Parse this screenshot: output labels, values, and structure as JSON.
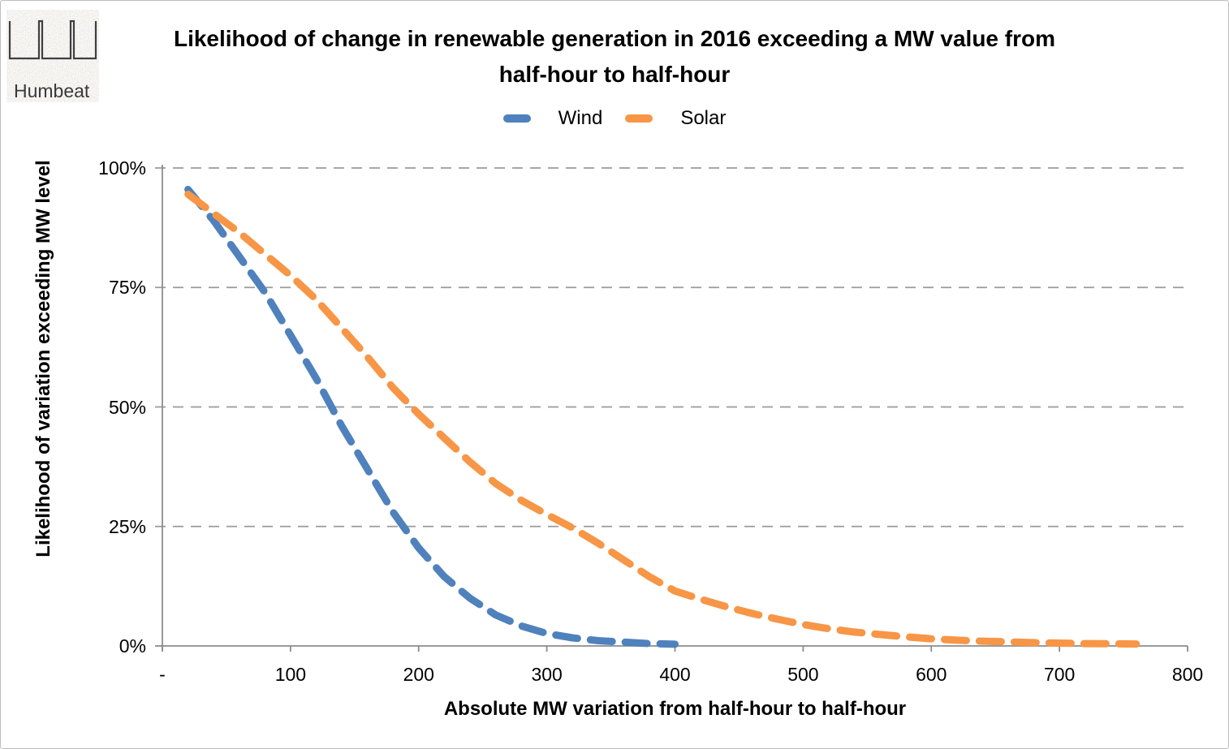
{
  "logo": {
    "text": "Humbeat"
  },
  "title": {
    "line1": "Likelihood of change in renewable generation in 2016 exceeding a MW value from",
    "line2": "half-hour to half-hour"
  },
  "colors": {
    "wind": "#4F81BD",
    "solar": "#F79646",
    "gridline": "#9B9B9B",
    "axis": "#8C8C8C",
    "frame_border": "#BDBDBD",
    "text": "#000000"
  },
  "chart_data": {
    "type": "line",
    "title": "Likelihood of change in renewable generation in 2016 exceeding a MW value from half-hour to half-hour",
    "xlabel": "Absolute MW variation from half-hour to half-hour",
    "ylabel": "Likelihood of variation exceeding MW level",
    "xlim": [
      0,
      800
    ],
    "ylim": [
      0,
      100
    ],
    "grid": "horizontal-dashed",
    "legend_position": "top-center",
    "line_style": "thick-dashed-round-cap",
    "x_ticks": [
      {
        "value": 0,
        "label": "-"
      },
      {
        "value": 100,
        "label": "100"
      },
      {
        "value": 200,
        "label": "200"
      },
      {
        "value": 300,
        "label": "300"
      },
      {
        "value": 400,
        "label": "400"
      },
      {
        "value": 500,
        "label": "500"
      },
      {
        "value": 600,
        "label": "600"
      },
      {
        "value": 700,
        "label": "700"
      },
      {
        "value": 800,
        "label": "800"
      }
    ],
    "y_ticks": [
      {
        "value": 0,
        "label": "0%"
      },
      {
        "value": 25,
        "label": "25%"
      },
      {
        "value": 50,
        "label": "50%"
      },
      {
        "value": 75,
        "label": "75%"
      },
      {
        "value": 100,
        "label": "100%"
      }
    ],
    "series": [
      {
        "name": "Wind",
        "color": "#4F81BD",
        "points": [
          [
            20,
            95.5
          ],
          [
            40,
            89
          ],
          [
            60,
            81.5
          ],
          [
            80,
            74
          ],
          [
            100,
            65
          ],
          [
            120,
            56
          ],
          [
            140,
            46
          ],
          [
            160,
            37
          ],
          [
            180,
            28
          ],
          [
            200,
            20.5
          ],
          [
            220,
            14.5
          ],
          [
            240,
            10
          ],
          [
            260,
            6.5
          ],
          [
            280,
            4.2
          ],
          [
            300,
            2.6
          ],
          [
            320,
            1.7
          ],
          [
            340,
            1.1
          ],
          [
            360,
            0.8
          ],
          [
            380,
            0.5
          ],
          [
            400,
            0.35
          ]
        ]
      },
      {
        "name": "Solar",
        "color": "#F79646",
        "points": [
          [
            20,
            94.5
          ],
          [
            40,
            90.5
          ],
          [
            60,
            86.5
          ],
          [
            80,
            82
          ],
          [
            100,
            77.5
          ],
          [
            120,
            72.5
          ],
          [
            140,
            66.5
          ],
          [
            160,
            60.5
          ],
          [
            180,
            54
          ],
          [
            200,
            48.5
          ],
          [
            220,
            43.5
          ],
          [
            240,
            38.5
          ],
          [
            260,
            34
          ],
          [
            280,
            30.5
          ],
          [
            300,
            27.5
          ],
          [
            320,
            24.7
          ],
          [
            340,
            21.5
          ],
          [
            360,
            18
          ],
          [
            380,
            14.5
          ],
          [
            400,
            11.5
          ],
          [
            420,
            9.8
          ],
          [
            440,
            8.2
          ],
          [
            460,
            6.8
          ],
          [
            480,
            5.6
          ],
          [
            500,
            4.5
          ],
          [
            520,
            3.6
          ],
          [
            540,
            2.9
          ],
          [
            560,
            2.4
          ],
          [
            580,
            1.9
          ],
          [
            600,
            1.5
          ],
          [
            620,
            1.2
          ],
          [
            640,
            1.0
          ],
          [
            660,
            0.85
          ],
          [
            680,
            0.7
          ],
          [
            700,
            0.6
          ],
          [
            720,
            0.5
          ],
          [
            740,
            0.45
          ],
          [
            760,
            0.4
          ]
        ]
      }
    ]
  }
}
